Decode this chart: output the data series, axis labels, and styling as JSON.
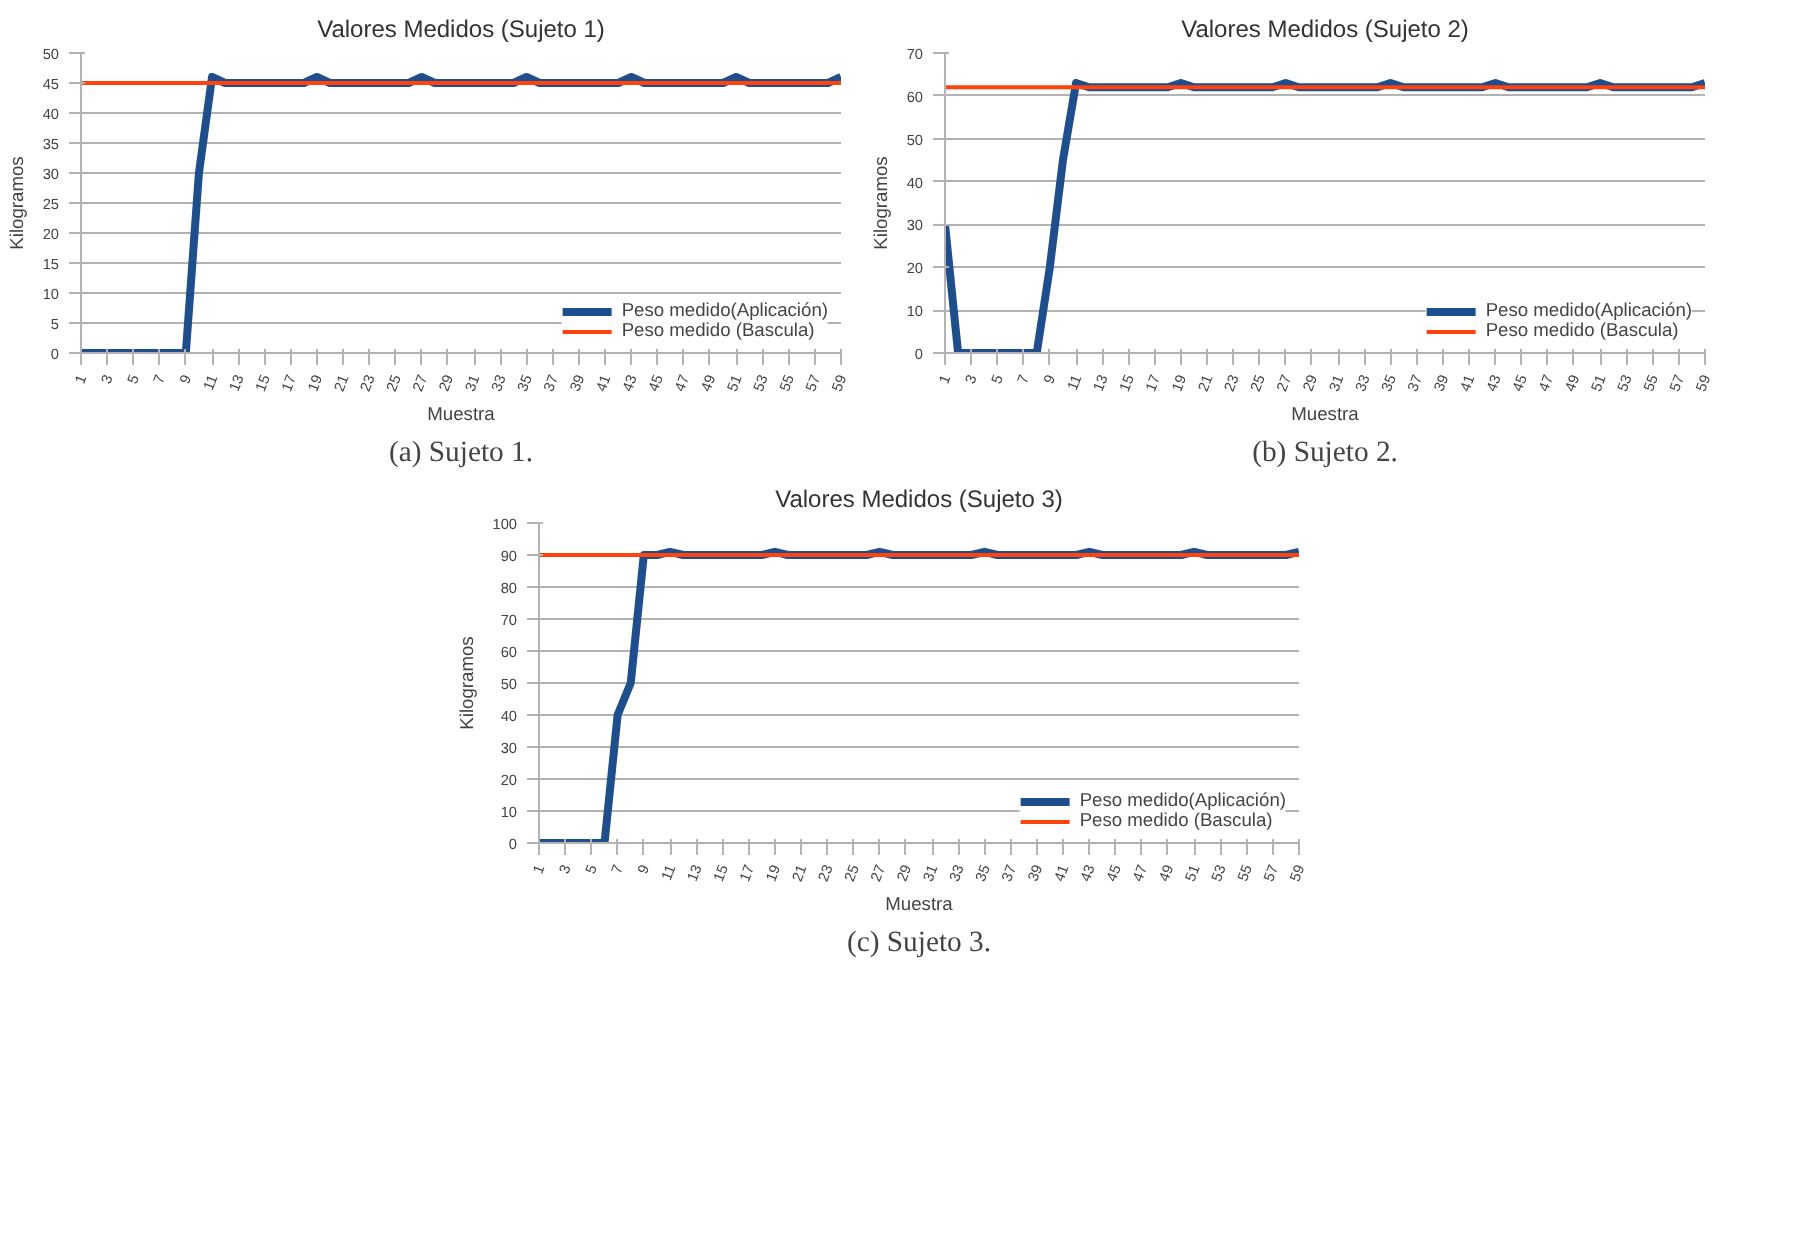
{
  "chart_data": [
    {
      "type": "line",
      "title": "Valores Medidos (Sujeto 1)",
      "xlabel": "Muestra",
      "ylabel": "Kilogramos",
      "annotations": [
        "(a) Sujeto 1."
      ],
      "categories": [
        "1",
        null,
        "3",
        null,
        "5",
        null,
        "7",
        null,
        "9",
        null,
        "11",
        null,
        "13",
        null,
        "15",
        null,
        "17",
        null,
        "19",
        null,
        "21",
        null,
        "23",
        null,
        "25",
        null,
        "27",
        null,
        "29",
        null,
        "31",
        null,
        "33",
        null,
        "35",
        null,
        "37",
        null,
        "39",
        null,
        "41",
        null,
        "43",
        null,
        "45",
        null,
        "47",
        null,
        "49",
        null,
        "51",
        null,
        "53",
        null,
        "55",
        null,
        "57",
        null,
        "59"
      ],
      "series": [
        {
          "name": "Peso medido(Aplicación)",
          "color": "#1f4e8c",
          "values": [
            0,
            0,
            0,
            0,
            0,
            0,
            0,
            0,
            0,
            30,
            46,
            45,
            45,
            45,
            45,
            45,
            45,
            45,
            46,
            45,
            45,
            45,
            45,
            45,
            45,
            45,
            46,
            45,
            45,
            45,
            45,
            45,
            45,
            45,
            46,
            45,
            45,
            45,
            45,
            45,
            45,
            45,
            46,
            45,
            45,
            45,
            45,
            45,
            45,
            45,
            46,
            45,
            45,
            45,
            45,
            45,
            45,
            45,
            46
          ]
        },
        {
          "name": "Peso medido (Bascula)",
          "color": "#ff420e",
          "values": [
            45,
            45,
            45,
            45,
            45,
            45,
            45,
            45,
            45,
            45,
            45,
            45,
            45,
            45,
            45,
            45,
            45,
            45,
            45,
            45,
            45,
            45,
            45,
            45,
            45,
            45,
            45,
            45,
            45,
            45,
            45,
            45,
            45,
            45,
            45,
            45,
            45,
            45,
            45,
            45,
            45,
            45,
            45,
            45,
            45,
            45,
            45,
            45,
            45,
            45,
            45,
            45,
            45,
            45,
            45,
            45,
            45,
            45,
            45
          ]
        }
      ],
      "ylim": [
        0,
        50
      ],
      "yticks": [
        0,
        5,
        10,
        15,
        20,
        25,
        30,
        35,
        40,
        45,
        50
      ],
      "grid": "y",
      "legend": "bottom"
    },
    {
      "type": "line",
      "title": "Valores Medidos (Sujeto 2)",
      "xlabel": "Muestra",
      "ylabel": "Kilogramos",
      "annotations": [
        "(b) Sujeto 2."
      ],
      "categories": [
        "1",
        null,
        "3",
        null,
        "5",
        null,
        "7",
        null,
        "9",
        null,
        "11",
        null,
        "13",
        null,
        "15",
        null,
        "17",
        null,
        "19",
        null,
        "21",
        null,
        "23",
        null,
        "25",
        null,
        "27",
        null,
        "29",
        null,
        "31",
        null,
        "33",
        null,
        "35",
        null,
        "37",
        null,
        "39",
        null,
        "41",
        null,
        "43",
        null,
        "45",
        null,
        "47",
        null,
        "49",
        null,
        "51",
        null,
        "53",
        null,
        "55",
        null,
        "57",
        null,
        "59"
      ],
      "series": [
        {
          "name": "Peso medido(Aplicación)",
          "color": "#1f4e8c",
          "values": [
            30,
            0,
            0,
            0,
            0,
            0,
            0,
            0,
            20,
            45,
            63,
            62,
            62,
            62,
            62,
            62,
            62,
            62,
            63,
            62,
            62,
            62,
            62,
            62,
            62,
            62,
            63,
            62,
            62,
            62,
            62,
            62,
            62,
            62,
            63,
            62,
            62,
            62,
            62,
            62,
            62,
            62,
            63,
            62,
            62,
            62,
            62,
            62,
            62,
            62,
            63,
            62,
            62,
            62,
            62,
            62,
            62,
            62,
            63
          ]
        },
        {
          "name": "Peso medido (Bascula)",
          "color": "#ff420e",
          "values": [
            62,
            62,
            62,
            62,
            62,
            62,
            62,
            62,
            62,
            62,
            62,
            62,
            62,
            62,
            62,
            62,
            62,
            62,
            62,
            62,
            62,
            62,
            62,
            62,
            62,
            62,
            62,
            62,
            62,
            62,
            62,
            62,
            62,
            62,
            62,
            62,
            62,
            62,
            62,
            62,
            62,
            62,
            62,
            62,
            62,
            62,
            62,
            62,
            62,
            62,
            62,
            62,
            62,
            62,
            62,
            62,
            62,
            62,
            62
          ]
        }
      ],
      "ylim": [
        0,
        70
      ],
      "yticks": [
        0,
        10,
        20,
        30,
        40,
        50,
        60,
        70
      ],
      "grid": "y",
      "legend": "bottom"
    },
    {
      "type": "line",
      "title": "Valores Medidos (Sujeto 3)",
      "xlabel": "Muestra",
      "ylabel": "Kilogramos",
      "annotations": [
        "(c) Sujeto 3."
      ],
      "categories": [
        "1",
        null,
        "3",
        null,
        "5",
        null,
        "7",
        null,
        "9",
        null,
        "11",
        null,
        "13",
        null,
        "15",
        null,
        "17",
        null,
        "19",
        null,
        "21",
        null,
        "23",
        null,
        "25",
        null,
        "27",
        null,
        "29",
        null,
        "31",
        null,
        "33",
        null,
        "35",
        null,
        "37",
        null,
        "39",
        null,
        "41",
        null,
        "43",
        null,
        "45",
        null,
        "47",
        null,
        "49",
        null,
        "51",
        null,
        "53",
        null,
        "55",
        null,
        "57",
        null,
        "59"
      ],
      "series": [
        {
          "name": "Peso medido(Aplicación)",
          "color": "#1f4e8c",
          "values": [
            0,
            0,
            0,
            0,
            0,
            0,
            40,
            50,
            90,
            90,
            91,
            90,
            90,
            90,
            90,
            90,
            90,
            90,
            91,
            90,
            90,
            90,
            90,
            90,
            90,
            90,
            91,
            90,
            90,
            90,
            90,
            90,
            90,
            90,
            91,
            90,
            90,
            90,
            90,
            90,
            90,
            90,
            91,
            90,
            90,
            90,
            90,
            90,
            90,
            90,
            91,
            90,
            90,
            90,
            90,
            90,
            90,
            90,
            91
          ]
        },
        {
          "name": "Peso medido (Bascula)",
          "color": "#ff420e",
          "values": [
            90,
            90,
            90,
            90,
            90,
            90,
            90,
            90,
            90,
            90,
            90,
            90,
            90,
            90,
            90,
            90,
            90,
            90,
            90,
            90,
            90,
            90,
            90,
            90,
            90,
            90,
            90,
            90,
            90,
            90,
            90,
            90,
            90,
            90,
            90,
            90,
            90,
            90,
            90,
            90,
            90,
            90,
            90,
            90,
            90,
            90,
            90,
            90,
            90,
            90,
            90,
            90,
            90,
            90,
            90,
            90,
            90,
            90,
            90
          ]
        }
      ],
      "ylim": [
        0,
        100
      ],
      "yticks": [
        0,
        10,
        20,
        30,
        40,
        50,
        60,
        70,
        80,
        90,
        100
      ],
      "grid": "y",
      "legend": "bottom"
    }
  ]
}
